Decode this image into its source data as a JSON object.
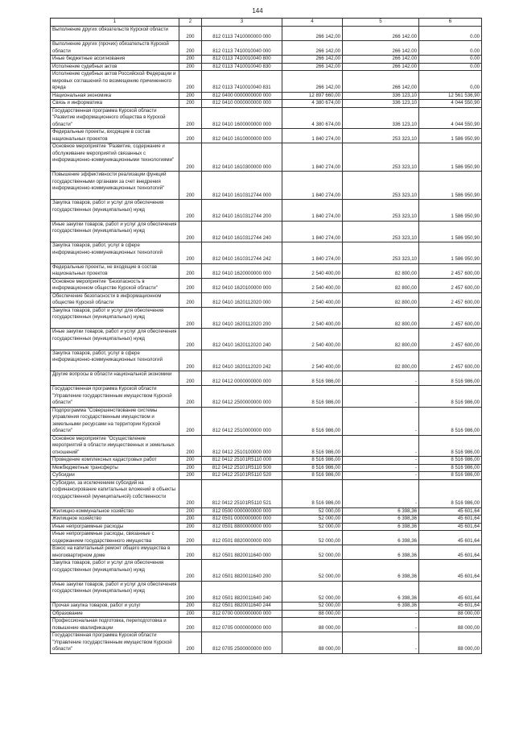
{
  "page_number": "144",
  "table": {
    "headers": [
      "1",
      "2",
      "3",
      "4",
      "5",
      "6"
    ],
    "rows": [
      [
        "Выполнение других обязательств Курской области",
        "200",
        "812 0113 7410000000 000",
        "266 142,00",
        "266 142.00",
        "0.00"
      ],
      [
        "Выполнение других (прочих) обязательств Курской области",
        "200",
        "812 0113 7410010040 000",
        "266 142,00",
        "266 142.00",
        "0.00"
      ],
      [
        "Иные бюджетные ассигнования",
        "200",
        "812 0113 7410010040 800",
        "266 142,00",
        "266 142.00",
        "0.00"
      ],
      [
        "Исполнение судебных актов",
        "200",
        "812 0113 7410010040 830",
        "266 142,00",
        "266 142.00",
        "0.00"
      ],
      [
        "Исполнение судебных актов Российской Федерации и мировых соглашений по возмещению причиненного вреда",
        "200",
        "812 0113 7410010040 831",
        "266 142,00",
        "266 142,00",
        "0,00"
      ],
      [
        "Национальная экономика",
        "200",
        "812 0400 0000000000 000",
        "12 897 660,00",
        "336 123,10",
        "12 561 536,90"
      ],
      [
        "Связь и информатика",
        "200",
        "812 0410 0000000000 000",
        "4 380 674,00",
        "336 123,10",
        "4 044 550,90"
      ],
      [
        "Государственная программа Курской области \"Развитие информационного общества в Курской области\"",
        "200",
        "812 0410 1600000000 000",
        "4 380 674,00",
        "336 123,10",
        "4 044 550,90"
      ],
      [
        "Федеральные проекты, входящие в состав национальных проектов",
        "200",
        "812 0410 1610000000 000",
        "1 840 274,00",
        "253 323,10",
        "1 586 950,90"
      ],
      [
        "Основное мероприятие \"Развитие, содержание и обслуживание мероприятий связанных с информационно-коммуникационными технологиями\"",
        "200",
        "812 0410 1610300000 000",
        "1 840 274,00",
        "253 323,10",
        "1 586 950,90"
      ],
      [
        "Повышение эффективности реализации функций государственными органами за счет внедрения информационно-коммуникационных технологий\"",
        "200",
        "812 0410 1610312744 000",
        "1 840 274,00",
        "253 323,10",
        "1 586 950,90"
      ],
      [
        "Закупка товаров, работ и услуг для обеспечения государственных (муниципальных) нужд",
        "200",
        "812 0410 1610312744 200",
        "1 840 274,00",
        "253 323,10",
        "1 586 950,90"
      ],
      [
        "Иные закупки товаров, работ и услуг для обеспечения государственных (муниципальных) нужд",
        "200",
        "812 0410 1610312744 240",
        "1 840 274,00",
        "253 323,10",
        "1 586 950,90"
      ],
      [
        "Закупка товаров, работ, услуг в сфере информационно-коммуникационных технологий",
        "200",
        "812 0410 1610312744 242",
        "1 840 274,00",
        "253 323,10",
        "1 586 950,90"
      ],
      [
        "Федеральные проекты, не входящие в состав национальных проектов",
        "200",
        "812 0410 1620000000 000",
        "2 540 400,00",
        "82 800,00",
        "2 457 600,00"
      ],
      [
        "Основное мероприятие \"Безопасность в информационном обществе Курской области\"",
        "200",
        "812 0410 1620100000 000",
        "2 540 400,00",
        "82 800,00",
        "2 457 600,00"
      ],
      [
        "Обеспечение безопасности в информационном обществе Курской области",
        "200",
        "812 0410 1620112020 000",
        "2 540 400,00",
        "82 800,00",
        "2 457 600,00"
      ],
      [
        "Закупка товаров, работ и услуг для обеспечения государственных (муниципальных) нужд",
        "200",
        "812 0410 1620112020 200",
        "2 540 400,00",
        "82 800,00",
        "2 457 600,00"
      ],
      [
        "Иные закупки товаров, работ и услуг для обеспечения государственных (муниципальных) нужд",
        "200",
        "812 0410 1620112020 240",
        "2 540 400,00",
        "82 800,00",
        "2 457 600,00"
      ],
      [
        "Закупка товаров, работ, услуг в сфере информационно-коммуникационных технологий",
        "200",
        "812 0410 1620112020 242",
        "2 540 400,00",
        "82 800,00",
        "2 457 600,00"
      ],
      [
        "Другие вопросы в области национальной экономики",
        "200",
        "812 0412 0000000000 000",
        "8 516 986,00",
        "-",
        "8 516 986,00"
      ],
      [
        "Государственная программа Курской области \"Управление государственным имуществом Курской области\"",
        "200",
        "812 0412 2500000000 000",
        "8 516 986,00",
        "-",
        "8 516 986,00"
      ],
      [
        "Подпрограмма \"Совершенствование системы управления государственным имуществом и земельными ресурсами на территории Курской области\"",
        "200",
        "812 0412 2510000000 000",
        "8 516 986,00",
        "-",
        "8 516 986,00"
      ],
      [
        "Основное мероприятие \"Осуществление мероприятий в области имущественных и земельных отношений\"",
        "200",
        "812 0412 2510100000 000",
        "8 516 986,00",
        "-",
        "8 516 986,00"
      ],
      [
        "Проведение комплексных кадастровых работ",
        "200",
        "812 0412 25101R5110 000",
        "8 516 986,00",
        "-",
        "8 516 986,00"
      ],
      [
        "Межбюджетные трансферты",
        "200",
        "812 0412 25101R5110 500",
        "8 516 986,00",
        "-",
        "8 516 986,00"
      ],
      [
        "Субсидии",
        "200",
        "812 0412 25101R5110 520",
        "8 516 986,00",
        "-",
        "8 516 986,00"
      ],
      [
        "Субсидии, за исключением субсидий на софинансирование капитальных вложений в объекты государственной (муниципальной) собственности",
        "200",
        "812 0412 25101R5110 521",
        "8 516 986,00",
        "-",
        "8 516 986,00"
      ],
      [
        "Жилищно-коммунальное хозяйство",
        "200",
        "812 0500 0000000000 000",
        "52 000,00",
        "6 398,36",
        "45 601,64"
      ],
      [
        "Жилищное хозяйство",
        "200",
        "812 0501 0000000000 000",
        "52 000,00",
        "6 398,36",
        "45 601,64"
      ],
      [
        "Иные непрограммные расходы",
        "200",
        "812 0501 8800000000 000",
        "52 000,00",
        "6 398,36",
        "45 601,64"
      ],
      [
        "Иные непрограммные расходы, связанные с содержанием государственного имущества",
        "200",
        "812 0501 8820000000 000",
        "52 000,00",
        "6 398,36",
        "45 601,64"
      ],
      [
        "Взнос на капитальный ремонт общего имущества в многоквартирном доме",
        "200",
        "812 0501 8820011640 000",
        "52 000,00",
        "6 398,36",
        "45 601,64"
      ],
      [
        "Закупка товаров, работ и услуг для обеспечения государственных (муниципальных) нужд",
        "200",
        "812 0501 8820011640 200",
        "52 000,00",
        "6 398,36",
        "45 601,64"
      ],
      [
        "Иные закупки товаров, работ и услуг для обеспечения государственных (муниципальных) нужд",
        "200",
        "812 0501 8820011640 240",
        "52 000,00",
        "6 398,36",
        "45 601,64"
      ],
      [
        "Прочая закупка товаров, работ и услуг",
        "200",
        "812 0501 8820011640 244",
        "52 000,00",
        "6 398,36",
        "45 601,64"
      ],
      [
        "Образование",
        "200",
        "812 0700 0000000000 000",
        "88 000,00",
        "-",
        "88 000,00"
      ],
      [
        "Профессиональная подготовка, переподготовка и повышение квалификации",
        "200",
        "812 0705 0000000000 000",
        "88 000,00",
        "-",
        "88 000,00"
      ],
      [
        "Государственная программа Курской области \"Управление государственным имуществом Курской области\"",
        "200",
        "812 0705 2500000000 000",
        "88 000,00",
        "-",
        "88 000,00"
      ]
    ]
  }
}
